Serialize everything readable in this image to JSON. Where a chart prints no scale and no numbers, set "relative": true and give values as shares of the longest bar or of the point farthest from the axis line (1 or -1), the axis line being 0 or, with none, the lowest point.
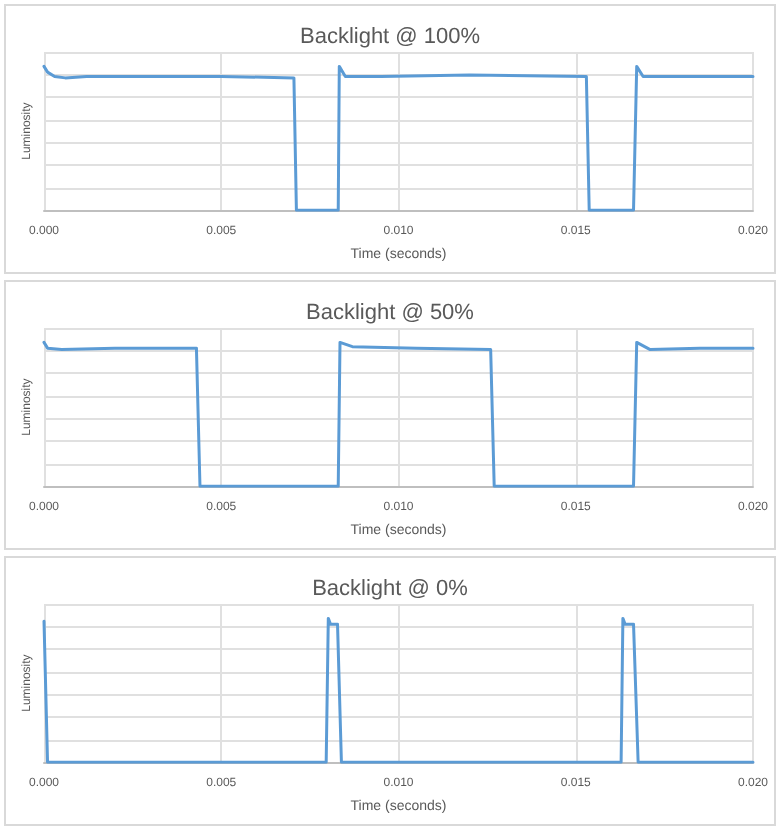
{
  "chart_data": [
    {
      "type": "line",
      "title": "Backlight @ 100%",
      "xlabel": "Time (seconds)",
      "ylabel": "Luminosity",
      "relative": true,
      "grid": true,
      "marker": "none",
      "line_style": "solid",
      "xlim": [
        0,
        0.02
      ],
      "xticks": [
        {
          "value": 0,
          "label": "0.000"
        },
        {
          "value": 0.005,
          "label": "0.005"
        },
        {
          "value": 0.01,
          "label": "0.010"
        },
        {
          "value": 0.015,
          "label": "0.015"
        },
        {
          "value": 0.02,
          "label": "0.020"
        }
      ],
      "series": [
        {
          "color": "#5b9bd5",
          "x": [
            0,
            0.0001,
            0.0003,
            0.0006,
            0.0012,
            0.003,
            0.005,
            0.00705,
            0.00712,
            0.0083,
            0.00833,
            0.0085,
            0.0095,
            0.012,
            0.0153,
            0.01538,
            0.01663,
            0.01672,
            0.0169,
            0.0185,
            0.02
          ],
          "values": [
            1.0,
            0.96,
            0.93,
            0.92,
            0.93,
            0.93,
            0.93,
            0.92,
            0,
            0,
            1.0,
            0.93,
            0.93,
            0.94,
            0.93,
            0,
            0,
            1.0,
            0.93,
            0.93,
            0.93
          ]
        }
      ]
    },
    {
      "type": "line",
      "title": "Backlight @ 50%",
      "xlabel": "Time (seconds)",
      "ylabel": "Luminosity",
      "relative": true,
      "grid": true,
      "marker": "none",
      "line_style": "solid",
      "xlim": [
        0,
        0.02
      ],
      "xticks": [
        {
          "value": 0,
          "label": "0.000"
        },
        {
          "value": 0.005,
          "label": "0.005"
        },
        {
          "value": 0.01,
          "label": "0.010"
        },
        {
          "value": 0.015,
          "label": "0.015"
        },
        {
          "value": 0.02,
          "label": "0.020"
        }
      ],
      "series": [
        {
          "color": "#5b9bd5",
          "x": [
            0,
            0.0001,
            0.0005,
            0.002,
            0.0043,
            0.0044,
            0.0083,
            0.00835,
            0.0087,
            0.0105,
            0.0126,
            0.0127,
            0.01663,
            0.01672,
            0.0171,
            0.0185,
            0.02
          ],
          "values": [
            1.0,
            0.96,
            0.95,
            0.96,
            0.96,
            0,
            0,
            1.0,
            0.97,
            0.96,
            0.95,
            0,
            0,
            1.0,
            0.95,
            0.96,
            0.96
          ]
        }
      ]
    },
    {
      "type": "line",
      "title": "Backlight @ 0%",
      "xlabel": "Time (seconds)",
      "ylabel": "Luminosity",
      "relative": true,
      "grid": true,
      "marker": "none",
      "line_style": "solid",
      "xlim": [
        0,
        0.02
      ],
      "xticks": [
        {
          "value": 0,
          "label": "0.000"
        },
        {
          "value": 0.005,
          "label": "0.005"
        },
        {
          "value": 0.01,
          "label": "0.010"
        },
        {
          "value": 0.015,
          "label": "0.015"
        },
        {
          "value": 0.02,
          "label": "0.020"
        }
      ],
      "series": [
        {
          "color": "#5b9bd5",
          "x": [
            0,
            0.0001,
            0.00796,
            0.00802,
            0.00808,
            0.00828,
            0.00839,
            0.01628,
            0.01633,
            0.01639,
            0.01663,
            0.01676,
            0.02
          ],
          "values": [
            0.98,
            0,
            0,
            1.0,
            0.96,
            0.96,
            0,
            0,
            1.0,
            0.96,
            0.96,
            0,
            0
          ]
        }
      ]
    }
  ]
}
